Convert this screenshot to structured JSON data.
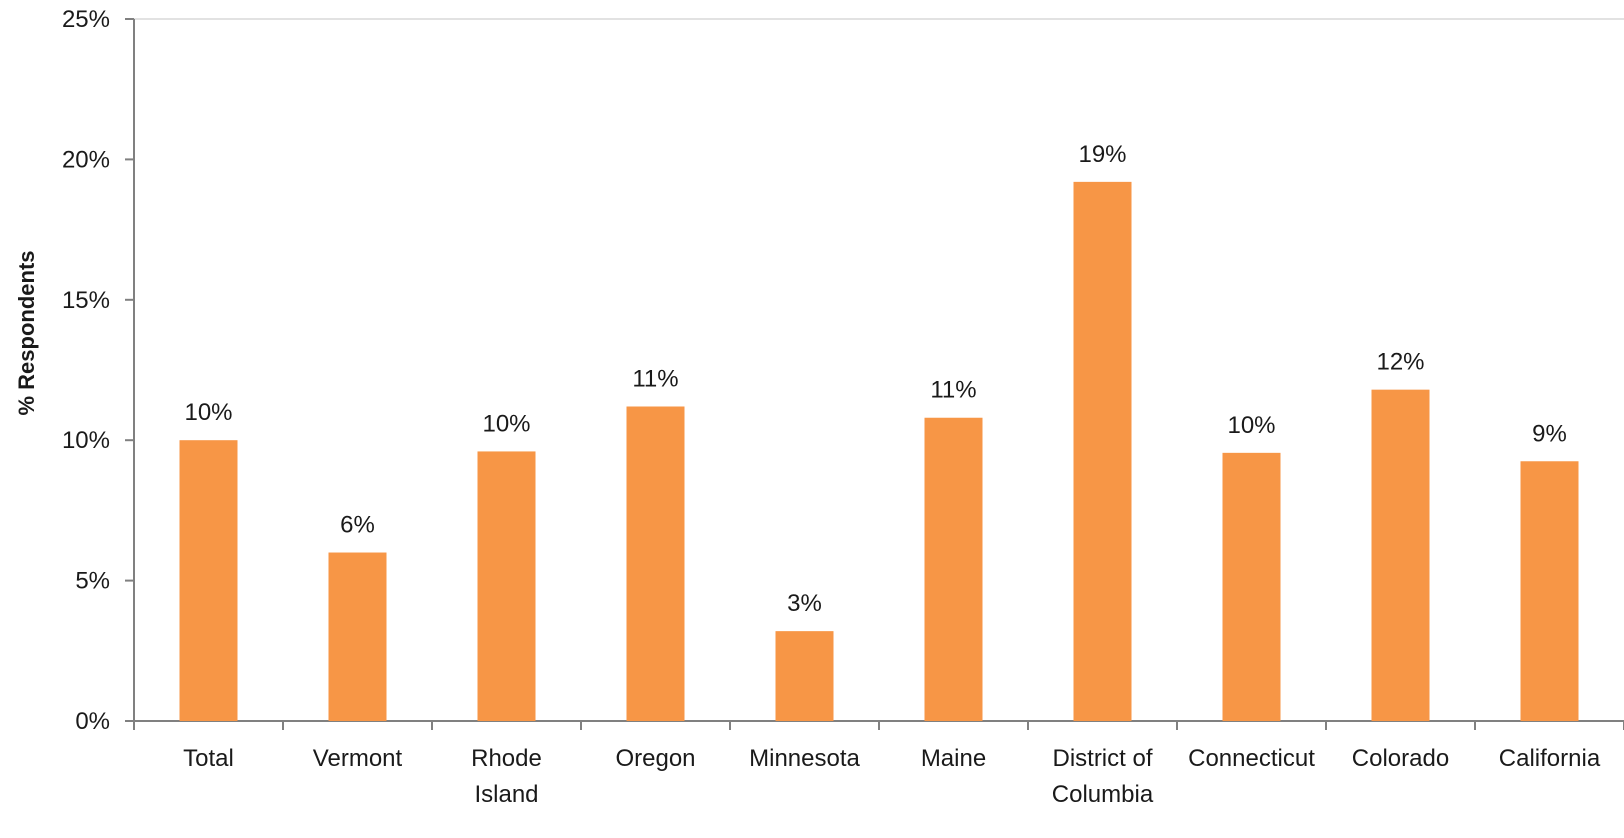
{
  "chart_data": {
    "type": "bar",
    "categories": [
      [
        "Total"
      ],
      [
        "Vermont"
      ],
      [
        "Rhode",
        "Island"
      ],
      [
        "Oregon"
      ],
      [
        "Minnesota"
      ],
      [
        "Maine"
      ],
      [
        "District of",
        "Columbia"
      ],
      [
        "Connecticut"
      ],
      [
        "Colorado"
      ],
      [
        "California"
      ]
    ],
    "values": [
      10.0,
      6.0,
      9.6,
      11.2,
      3.2,
      10.8,
      19.2,
      9.55,
      11.8,
      9.25
    ],
    "data_labels": [
      "10%",
      "6%",
      "10%",
      "11%",
      "3%",
      "11%",
      "19%",
      "10%",
      "12%",
      "9%"
    ],
    "ylabel": "% Respondents",
    "ylim": [
      0,
      25
    ],
    "yticks": [
      0,
      5,
      10,
      15,
      20,
      25
    ],
    "ytick_labels": [
      "0%",
      "5%",
      "10%",
      "15%",
      "20%",
      "25%"
    ],
    "bar_color": "#F79646",
    "axis_color": "#808080",
    "grid": false,
    "legend": "none"
  }
}
